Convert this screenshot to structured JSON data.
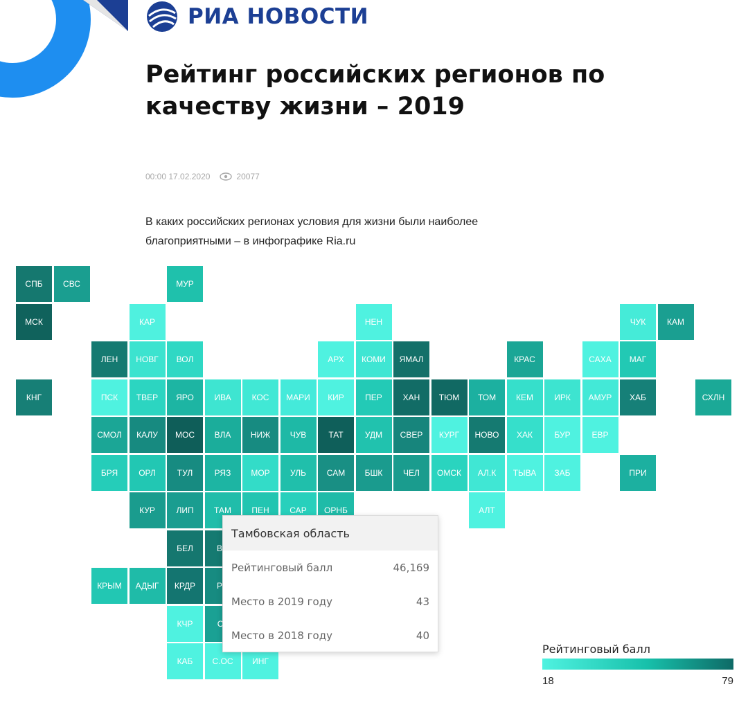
{
  "logo": {
    "text": "РИА НОВОСТИ"
  },
  "article": {
    "title": "Рейтинг российских регионов по качеству жизни – 2019",
    "datetime": "00:00 17.02.2020",
    "views": "20077",
    "lead": "В каких российских регионах условия для жизни были наиболее благоприятными – в инфографике Ria.ru"
  },
  "tooltip": {
    "region": "Тамбовская область",
    "rows": [
      {
        "label": "Рейтинговый балл",
        "value": "46,169"
      },
      {
        "label": "Место в 2019 году",
        "value": "43"
      },
      {
        "label": "Место в 2018 году",
        "value": "40"
      }
    ]
  },
  "legend": {
    "title": "Рейтинговый балл",
    "min": "18",
    "max": "79"
  },
  "colors": {
    "brand": "#1c3f94",
    "accent": "#1e8ef0"
  },
  "map": {
    "cells": [
      {
        "label": "СПБ",
        "col": 0,
        "row": 0,
        "color": "#15786f"
      },
      {
        "label": "СВС",
        "col": 1,
        "row": 0,
        "color": "#1a9e90"
      },
      {
        "label": "МУР",
        "col": 4,
        "row": 0,
        "color": "#1fc1ac"
      },
      {
        "label": "МСК",
        "col": 0,
        "row": 1,
        "color": "#10625c"
      },
      {
        "label": "КАР",
        "col": 3,
        "row": 1,
        "color": "#4ff1df"
      },
      {
        "label": "НЕН",
        "col": 9,
        "row": 1,
        "color": "#4ff2e0"
      },
      {
        "label": "ЧУК",
        "col": 16,
        "row": 1,
        "color": "#45ebd8"
      },
      {
        "label": "КАМ",
        "col": 17,
        "row": 1,
        "color": "#1a9f91"
      },
      {
        "label": "ЛЕН",
        "col": 2,
        "row": 2,
        "color": "#157a71"
      },
      {
        "label": "НОВГ",
        "col": 3,
        "row": 2,
        "color": "#3ce3cf"
      },
      {
        "label": "ВОЛ",
        "col": 4,
        "row": 2,
        "color": "#2fd8c4"
      },
      {
        "label": "АРХ",
        "col": 8,
        "row": 2,
        "color": "#4ff2e0"
      },
      {
        "label": "КОМИ",
        "col": 9,
        "row": 2,
        "color": "#3fe6d3"
      },
      {
        "label": "ЯМАЛ",
        "col": 10,
        "row": 2,
        "color": "#137069"
      },
      {
        "label": "КРАС",
        "col": 13,
        "row": 2,
        "color": "#1ba696"
      },
      {
        "label": "САХА",
        "col": 15,
        "row": 2,
        "color": "#4ff2e0"
      },
      {
        "label": "МАГ",
        "col": 16,
        "row": 2,
        "color": "#22c9b4"
      },
      {
        "label": "КНГ",
        "col": 0,
        "row": 3,
        "color": "#177f76"
      },
      {
        "label": "ПСК",
        "col": 2,
        "row": 3,
        "color": "#4ff2e0"
      },
      {
        "label": "ТВЕР",
        "col": 3,
        "row": 3,
        "color": "#2cd5c1"
      },
      {
        "label": "ЯРО",
        "col": 4,
        "row": 3,
        "color": "#1db5a3"
      },
      {
        "label": "ИВА",
        "col": 5,
        "row": 3,
        "color": "#3ee5d1"
      },
      {
        "label": "КОС",
        "col": 6,
        "row": 3,
        "color": "#41e8d5"
      },
      {
        "label": "МАРИ",
        "col": 7,
        "row": 3,
        "color": "#44eada"
      },
      {
        "label": "КИР",
        "col": 8,
        "row": 3,
        "color": "#4ff2e0"
      },
      {
        "label": "ПЕР",
        "col": 9,
        "row": 3,
        "color": "#23cab6"
      },
      {
        "label": "ХАН",
        "col": 10,
        "row": 3,
        "color": "#126c66"
      },
      {
        "label": "ТЮМ",
        "col": 11,
        "row": 3,
        "color": "#116963"
      },
      {
        "label": "ТОМ",
        "col": 12,
        "row": 3,
        "color": "#1cb0a0"
      },
      {
        "label": "КЕМ",
        "col": 13,
        "row": 3,
        "color": "#36dfcb"
      },
      {
        "label": "ИРК",
        "col": 14,
        "row": 3,
        "color": "#3de4d0"
      },
      {
        "label": "АМУР",
        "col": 15,
        "row": 3,
        "color": "#43e9d7"
      },
      {
        "label": "ХАБ",
        "col": 16,
        "row": 3,
        "color": "#168078"
      },
      {
        "label": "СХЛН",
        "col": 18,
        "row": 3,
        "color": "#1ba997"
      },
      {
        "label": "СМОЛ",
        "col": 2,
        "row": 4,
        "color": "#1ba696"
      },
      {
        "label": "КАЛУ",
        "col": 3,
        "row": 4,
        "color": "#178a80"
      },
      {
        "label": "МОС",
        "col": 4,
        "row": 4,
        "color": "#0f5e59"
      },
      {
        "label": "ВЛА",
        "col": 5,
        "row": 4,
        "color": "#1bad9b"
      },
      {
        "label": "НИЖ",
        "col": 6,
        "row": 4,
        "color": "#178b81"
      },
      {
        "label": "ЧУВ",
        "col": 7,
        "row": 4,
        "color": "#1eb9a6"
      },
      {
        "label": "ТАТ",
        "col": 8,
        "row": 4,
        "color": "#0f5f5a"
      },
      {
        "label": "УДМ",
        "col": 9,
        "row": 4,
        "color": "#21c2ae"
      },
      {
        "label": "СВЕР",
        "col": 10,
        "row": 4,
        "color": "#17857c"
      },
      {
        "label": "КУРГ",
        "col": 11,
        "row": 4,
        "color": "#4ff2e0"
      },
      {
        "label": "НОВО",
        "col": 12,
        "row": 4,
        "color": "#157a71"
      },
      {
        "label": "ХАК",
        "col": 13,
        "row": 4,
        "color": "#36dfcb"
      },
      {
        "label": "БУР",
        "col": 14,
        "row": 4,
        "color": "#4ff2e0"
      },
      {
        "label": "ЕВР",
        "col": 15,
        "row": 4,
        "color": "#4ff2e0"
      },
      {
        "label": "БРЯ",
        "col": 2,
        "row": 5,
        "color": "#25cdb9"
      },
      {
        "label": "ОРЛ",
        "col": 3,
        "row": 5,
        "color": "#22c7b3"
      },
      {
        "label": "ТУЛ",
        "col": 4,
        "row": 5,
        "color": "#178b81"
      },
      {
        "label": "РЯЗ",
        "col": 5,
        "row": 5,
        "color": "#1db5a3"
      },
      {
        "label": "МОР",
        "col": 6,
        "row": 5,
        "color": "#33dcc8"
      },
      {
        "label": "УЛЬ",
        "col": 7,
        "row": 5,
        "color": "#20bfab"
      },
      {
        "label": "САМ",
        "col": 8,
        "row": 5,
        "color": "#198f84"
      },
      {
        "label": "БШК",
        "col": 9,
        "row": 5,
        "color": "#1a9b8e"
      },
      {
        "label": "ЧЕЛ",
        "col": 10,
        "row": 5,
        "color": "#1a9c8e"
      },
      {
        "label": "ОМСК",
        "col": 11,
        "row": 5,
        "color": "#2ad4bf"
      },
      {
        "label": "АЛ.К",
        "col": 12,
        "row": 5,
        "color": "#40e7d4"
      },
      {
        "label": "ТЫВА",
        "col": 13,
        "row": 5,
        "color": "#4ff2e0"
      },
      {
        "label": "ЗАБ",
        "col": 14,
        "row": 5,
        "color": "#4ff2e0"
      },
      {
        "label": "ПРИ",
        "col": 16,
        "row": 5,
        "color": "#1cb0a0"
      },
      {
        "label": "КУР",
        "col": 3,
        "row": 6,
        "color": "#1a9c8e"
      },
      {
        "label": "ЛИП",
        "col": 4,
        "row": 6,
        "color": "#1a9d90"
      },
      {
        "label": "ТАМ",
        "col": 5,
        "row": 6,
        "color": "#20bdaa"
      },
      {
        "label": "ПЕН",
        "col": 6,
        "row": 6,
        "color": "#22c5b1"
      },
      {
        "label": "САР",
        "col": 7,
        "row": 6,
        "color": "#28d0bc"
      },
      {
        "label": "ОРНБ",
        "col": 8,
        "row": 6,
        "color": "#1fbba8"
      },
      {
        "label": "АЛТ",
        "col": 12,
        "row": 6,
        "color": "#4ff2e0"
      },
      {
        "label": "БЕЛ",
        "col": 4,
        "row": 7,
        "color": "#15776f"
      },
      {
        "label": "ВО",
        "col": 5,
        "row": 7,
        "color": "#157a71"
      },
      {
        "label": "КРЫМ",
        "col": 2,
        "row": 8,
        "color": "#22c7b3"
      },
      {
        "label": "АДЫГ",
        "col": 3,
        "row": 8,
        "color": "#1fbba8"
      },
      {
        "label": "КРДР",
        "col": 4,
        "row": 8,
        "color": "#147570"
      },
      {
        "label": "РО",
        "col": 5,
        "row": 8,
        "color": "#178b81"
      },
      {
        "label": "КЧР",
        "col": 4,
        "row": 9,
        "color": "#4ff2e0"
      },
      {
        "label": "СТ",
        "col": 5,
        "row": 9,
        "color": "#1aa194"
      },
      {
        "label": "КАБ",
        "col": 4,
        "row": 10,
        "color": "#4ff2e0"
      },
      {
        "label": "С.ОС",
        "col": 5,
        "row": 10,
        "color": "#4ff2e0"
      },
      {
        "label": "ИНГ",
        "col": 6,
        "row": 10,
        "color": "#4ff2e0"
      }
    ]
  }
}
